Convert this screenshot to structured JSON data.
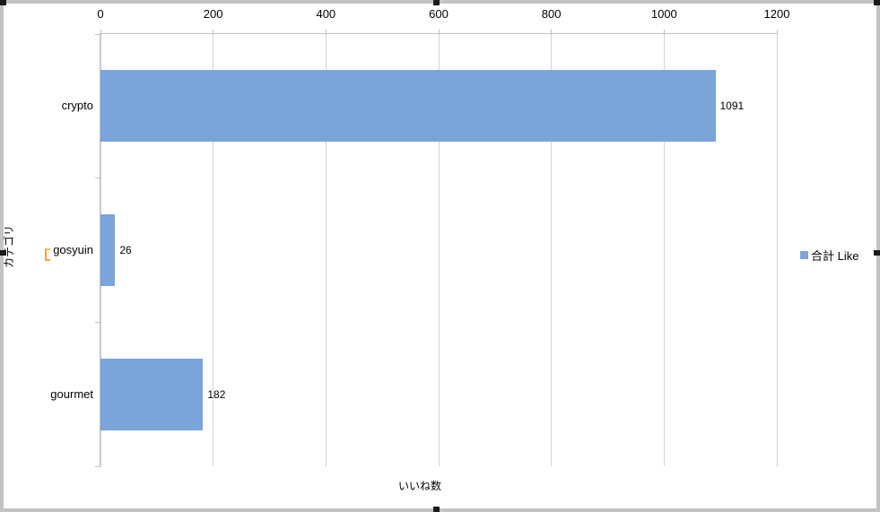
{
  "chart_data": {
    "type": "bar",
    "orientation": "horizontal",
    "categories": [
      "crypto",
      "gosyuin",
      "gourmet"
    ],
    "series": [
      {
        "name": "合計 Like",
        "values": [
          1091,
          26,
          182
        ]
      }
    ],
    "data_labels": [
      "1091",
      "26",
      "182"
    ],
    "xlabel": "いいね数",
    "ylabel": "カテゴリ",
    "xlim": [
      0,
      1200
    ],
    "xticks": [
      "0",
      "200",
      "400",
      "600",
      "800",
      "1000",
      "1200"
    ],
    "grid": true,
    "legend": {
      "label": "合計 Like",
      "position": "right"
    },
    "colors": {
      "bar": "#7BA4D8",
      "gridline": "#D3D3D3",
      "axis": "#BFBFBF",
      "text": "#000000",
      "chart_frame": "#C3C3C3"
    }
  }
}
